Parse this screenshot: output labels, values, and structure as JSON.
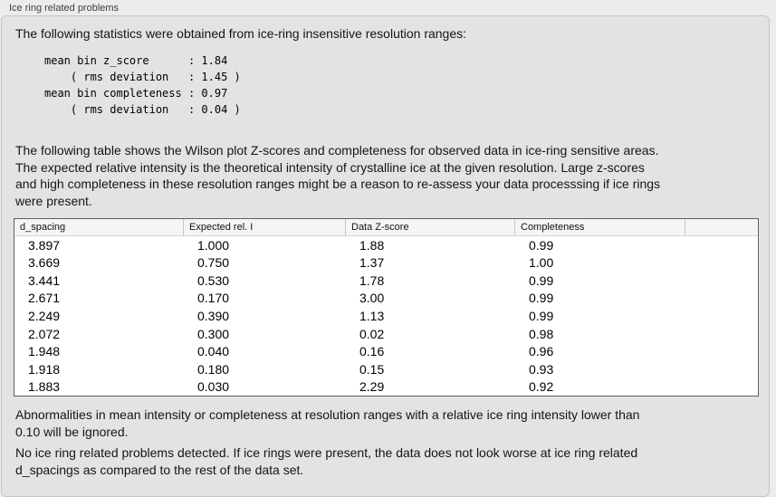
{
  "panel": {
    "title": "Ice ring related problems"
  },
  "intro": "The following statistics were obtained from ice-ring insensitive resolution ranges:",
  "stats_block": "mean bin z_score      : 1.84\n    ( rms deviation   : 1.45 )\nmean bin completeness : 0.97\n    ( rms deviation   : 0.04 )",
  "description_lines": [
    "The following table shows the Wilson plot Z-scores and completeness for observed data in ice-ring sensitive areas.",
    "The expected relative intensity is the theoretical intensity of crystalline ice at the given resolution. Large z-scores",
    "and high completeness in these resolution ranges might be a reason to re-assess your data processsing if ice rings",
    "were present."
  ],
  "table": {
    "columns": [
      "d_spacing",
      "Expected rel. I",
      "Data Z-score",
      "Completeness",
      ""
    ],
    "rows": [
      [
        "3.897",
        "1.000",
        "1.88",
        "0.99"
      ],
      [
        "3.669",
        "0.750",
        "1.37",
        "1.00"
      ],
      [
        "3.441",
        "0.530",
        "1.78",
        "0.99"
      ],
      [
        "2.671",
        "0.170",
        "3.00",
        "0.99"
      ],
      [
        "2.249",
        "0.390",
        "1.13",
        "0.99"
      ],
      [
        "2.072",
        "0.300",
        "0.02",
        "0.98"
      ],
      [
        "1.948",
        "0.040",
        "0.16",
        "0.96"
      ],
      [
        "1.918",
        "0.180",
        "0.15",
        "0.93"
      ],
      [
        "1.883",
        "0.030",
        "2.29",
        "0.92"
      ]
    ]
  },
  "note_lines": [
    "Abnormalities in mean intensity or completeness at resolution ranges with a relative ice ring intensity lower than",
    "0.10 will be ignored."
  ],
  "conclusion_lines": [
    "No ice ring related problems detected. If ice rings were present, the data does not look worse at ice ring related",
    "d_spacings as compared to the rest of the data set."
  ],
  "colors": {
    "page_background": "#ececec",
    "box_background": "#e3e3e3",
    "box_border": "#c6c6c6",
    "table_border": "#5f5f5f",
    "table_header_background": "#f5f5f5"
  }
}
